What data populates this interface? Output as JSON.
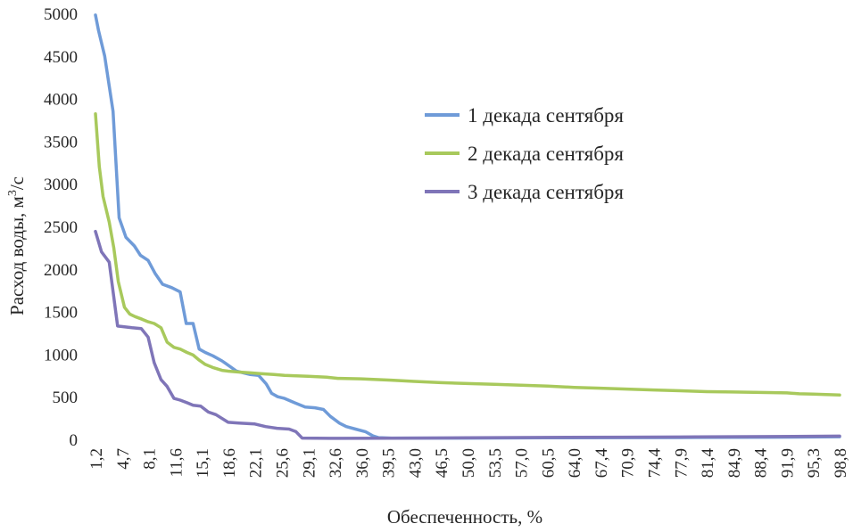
{
  "chart_data": {
    "type": "line",
    "title": "",
    "xlabel": "Обеспеченность, %",
    "ylabel_main": "Расход воды, м",
    "ylabel_sup": "3",
    "ylabel_tail": "/с",
    "ylim": [
      0,
      5000
    ],
    "xlim": [
      1.2,
      98.8
    ],
    "grid": false,
    "legend_position": "right",
    "y_ticks": [
      "0",
      "500",
      "1000",
      "1500",
      "2000",
      "2500",
      "3000",
      "3500",
      "4000",
      "4500",
      "5000"
    ],
    "x_ticks": [
      "1,2",
      "4,7",
      "8,1",
      "11,6",
      "15,1",
      "18,6",
      "22,1",
      "25,6",
      "29,1",
      "32,6",
      "36,0",
      "39,5",
      "43,0",
      "46,5",
      "50,0",
      "53,5",
      "57,0",
      "60,5",
      "64,0",
      "67,4",
      "70,9",
      "74,4",
      "77,9",
      "81,4",
      "84,9",
      "88,4",
      "91,9",
      "95,3",
      "98,8"
    ],
    "series": [
      {
        "name": "1 декада сентября",
        "color": "#6f9bd8",
        "points": [
          [
            1.2,
            4980
          ],
          [
            1.6,
            4800
          ],
          [
            2.4,
            4500
          ],
          [
            3.5,
            3850
          ],
          [
            4.3,
            2600
          ],
          [
            5.2,
            2370
          ],
          [
            6.3,
            2270
          ],
          [
            7.1,
            2160
          ],
          [
            8.1,
            2100
          ],
          [
            9.0,
            1950
          ],
          [
            10.0,
            1820
          ],
          [
            11.2,
            1780
          ],
          [
            12.3,
            1730
          ],
          [
            13.1,
            1360
          ],
          [
            14.0,
            1360
          ],
          [
            14.8,
            1060
          ],
          [
            15.6,
            1020
          ],
          [
            16.6,
            980
          ],
          [
            17.8,
            920
          ],
          [
            18.6,
            870
          ],
          [
            19.7,
            800
          ],
          [
            20.6,
            780
          ],
          [
            21.5,
            760
          ],
          [
            22.6,
            750
          ],
          [
            23.6,
            650
          ],
          [
            24.3,
            540
          ],
          [
            25.1,
            500
          ],
          [
            26.0,
            480
          ],
          [
            27.3,
            430
          ],
          [
            28.7,
            380
          ],
          [
            30.0,
            370
          ],
          [
            31.1,
            350
          ],
          [
            32.0,
            270
          ],
          [
            33.2,
            190
          ],
          [
            34.1,
            150
          ],
          [
            35.3,
            120
          ],
          [
            36.6,
            90
          ],
          [
            37.6,
            40
          ],
          [
            38.3,
            20
          ],
          [
            40,
            15
          ],
          [
            50,
            15
          ],
          [
            60,
            18
          ],
          [
            70,
            20
          ],
          [
            80,
            22
          ],
          [
            90,
            25
          ],
          [
            98.8,
            30
          ]
        ]
      },
      {
        "name": "2 декада сентября",
        "color": "#a8c95c",
        "points": [
          [
            1.2,
            3820
          ],
          [
            1.7,
            3200
          ],
          [
            2.2,
            2850
          ],
          [
            3.0,
            2550
          ],
          [
            3.6,
            2250
          ],
          [
            4.2,
            1850
          ],
          [
            5.0,
            1550
          ],
          [
            5.7,
            1470
          ],
          [
            6.4,
            1440
          ],
          [
            7.3,
            1410
          ],
          [
            8.1,
            1380
          ],
          [
            8.9,
            1360
          ],
          [
            9.8,
            1310
          ],
          [
            10.6,
            1140
          ],
          [
            11.5,
            1080
          ],
          [
            12.3,
            1060
          ],
          [
            13.2,
            1020
          ],
          [
            14.0,
            990
          ],
          [
            14.8,
            930
          ],
          [
            15.6,
            880
          ],
          [
            16.7,
            840
          ],
          [
            17.8,
            810
          ],
          [
            18.6,
            800
          ],
          [
            20.0,
            790
          ],
          [
            21.5,
            780
          ],
          [
            23.0,
            770
          ],
          [
            24.6,
            760
          ],
          [
            26.0,
            750
          ],
          [
            29.1,
            740
          ],
          [
            31.5,
            730
          ],
          [
            33.0,
            715
          ],
          [
            36.0,
            710
          ],
          [
            40.0,
            695
          ],
          [
            43.0,
            680
          ],
          [
            46.5,
            665
          ],
          [
            50.0,
            655
          ],
          [
            53.5,
            645
          ],
          [
            57.0,
            635
          ],
          [
            60.5,
            625
          ],
          [
            64.0,
            610
          ],
          [
            67.4,
            600
          ],
          [
            70.9,
            590
          ],
          [
            74.4,
            580
          ],
          [
            77.9,
            570
          ],
          [
            81.4,
            560
          ],
          [
            84.9,
            555
          ],
          [
            88.4,
            550
          ],
          [
            91.9,
            545
          ],
          [
            93.5,
            535
          ],
          [
            95.3,
            530
          ],
          [
            98.8,
            520
          ]
        ]
      },
      {
        "name": "3 декада сентября",
        "color": "#7f75b8",
        "points": [
          [
            1.2,
            2440
          ],
          [
            2.0,
            2200
          ],
          [
            3.0,
            2080
          ],
          [
            4.1,
            1330
          ],
          [
            5.0,
            1320
          ],
          [
            6.0,
            1310
          ],
          [
            7.2,
            1300
          ],
          [
            8.1,
            1200
          ],
          [
            8.9,
            900
          ],
          [
            9.8,
            700
          ],
          [
            10.6,
            620
          ],
          [
            11.5,
            480
          ],
          [
            12.3,
            460
          ],
          [
            13.2,
            430
          ],
          [
            14.0,
            400
          ],
          [
            15.0,
            390
          ],
          [
            16.0,
            320
          ],
          [
            17.0,
            290
          ],
          [
            18.6,
            200
          ],
          [
            20.0,
            190
          ],
          [
            22.1,
            180
          ],
          [
            23.5,
            150
          ],
          [
            25.0,
            130
          ],
          [
            26.6,
            120
          ],
          [
            27.5,
            90
          ],
          [
            28.3,
            15
          ],
          [
            32.0,
            12
          ],
          [
            40,
            14
          ],
          [
            50,
            18
          ],
          [
            60,
            22
          ],
          [
            70,
            25
          ],
          [
            80,
            28
          ],
          [
            90,
            32
          ],
          [
            98.8,
            38
          ]
        ]
      }
    ]
  }
}
